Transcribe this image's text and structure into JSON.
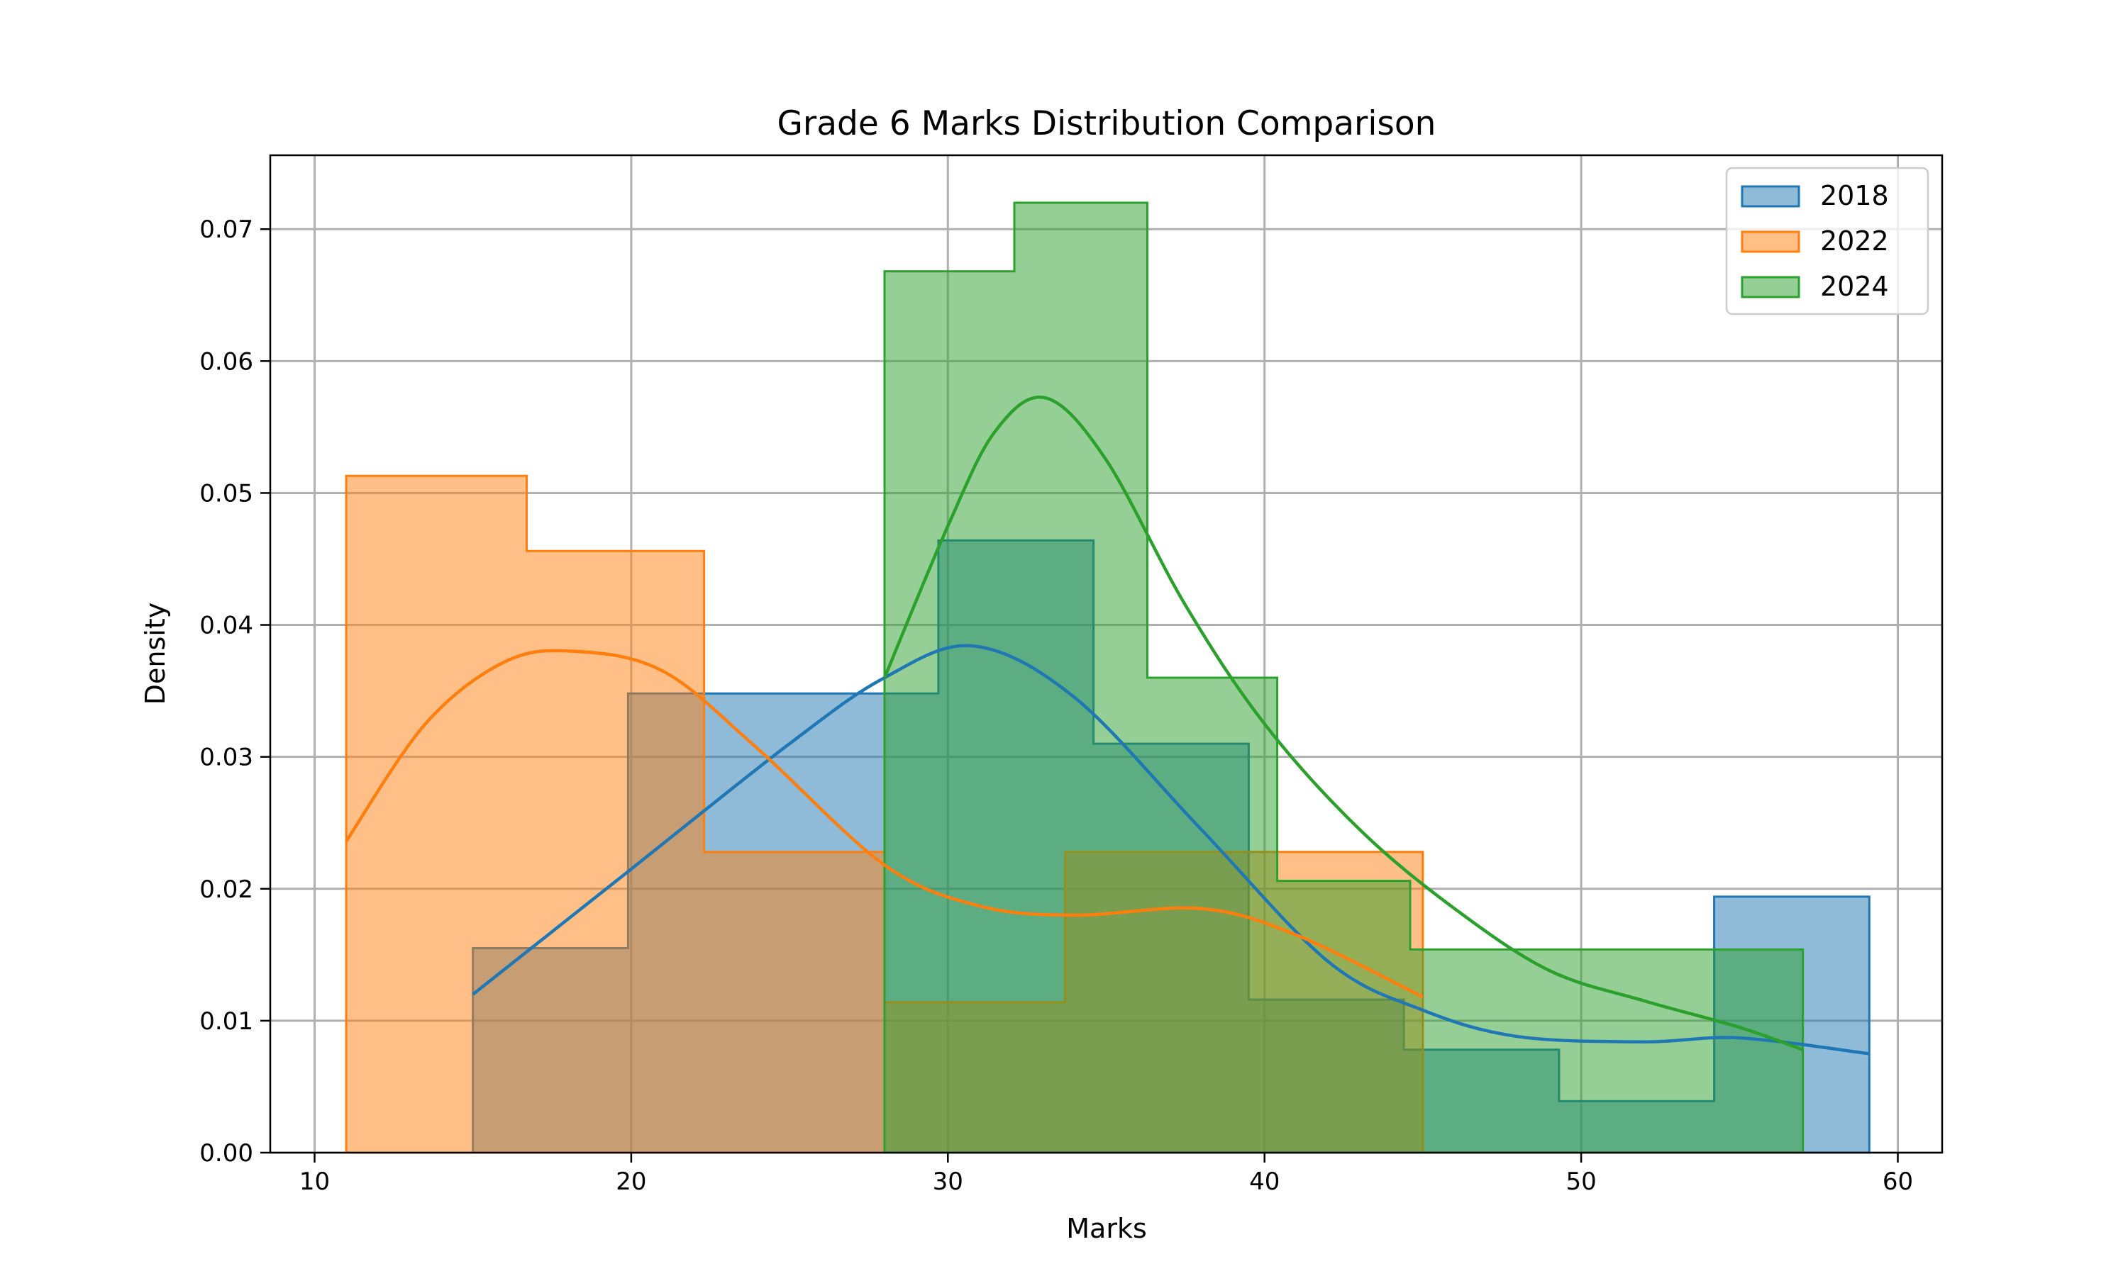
{
  "chart_data": {
    "type": "histogram",
    "title": "Grade 6 Marks Distribution Comparison",
    "xlabel": "Marks",
    "ylabel": "Density",
    "xlim": [
      8.6,
      61.4
    ],
    "ylim": [
      0,
      0.0756
    ],
    "xticks": [
      10,
      20,
      30,
      40,
      50,
      60
    ],
    "xtick_labels": [
      "10",
      "20",
      "30",
      "40",
      "50",
      "60"
    ],
    "yticks": [
      0,
      0.01,
      0.02,
      0.03,
      0.04,
      0.05,
      0.06,
      0.07
    ],
    "ytick_labels": [
      "0.00",
      "0.01",
      "0.02",
      "0.03",
      "0.04",
      "0.05",
      "0.06",
      "0.07"
    ],
    "grid": true,
    "legend_position": "top-right",
    "series": [
      {
        "name": "2018",
        "color": "#1f77b4",
        "bin_edges": [
          15,
          19.9,
          24.8,
          29.7,
          34.6,
          39.5,
          44.4,
          49.3,
          54.2,
          59.1
        ],
        "density": [
          0.0155,
          0.0348,
          0.0348,
          0.0464,
          0.031,
          0.0116,
          0.0078,
          0.0039,
          0.0194
        ],
        "kde": {
          "x": [
            15,
            20,
            25,
            28,
            30.8,
            34,
            38,
            42,
            45,
            48,
            52,
            55,
            59.1
          ],
          "y": [
            0.012,
            0.0215,
            0.031,
            0.036,
            0.0384,
            0.0345,
            0.0245,
            0.0145,
            0.0108,
            0.0088,
            0.0084,
            0.0087,
            0.0075
          ]
        }
      },
      {
        "name": "2022",
        "color": "#ff7f0e",
        "bin_edges": [
          11,
          16.7,
          22.3,
          28,
          33.7,
          39.3,
          45
        ],
        "density": [
          0.0513,
          0.0456,
          0.0228,
          0.0114,
          0.0228,
          0.0228
        ],
        "kde": {
          "x": [
            11,
            13.5,
            16,
            18.2,
            21,
            24,
            28,
            31,
            34,
            38,
            41,
            45
          ],
          "y": [
            0.0236,
            0.0325,
            0.0372,
            0.038,
            0.0365,
            0.0306,
            0.0218,
            0.0187,
            0.018,
            0.0185,
            0.0165,
            0.0118
          ]
        }
      },
      {
        "name": "2024",
        "color": "#2ca02c",
        "bin_edges": [
          28,
          32.1,
          36.3,
          40.4,
          44.6,
          48.7,
          52.9,
          57
        ],
        "density": [
          0.0668,
          0.072,
          0.036,
          0.0206,
          0.0154,
          0.0154,
          0.0154
        ],
        "kde": {
          "x": [
            28,
            30,
            31.5,
            33.1,
            35,
            37.5,
            40,
            43,
            46,
            49,
            52,
            55,
            57
          ],
          "y": [
            0.036,
            0.0475,
            0.0547,
            0.0572,
            0.0525,
            0.0415,
            0.0325,
            0.0245,
            0.0185,
            0.0138,
            0.0115,
            0.0095,
            0.0078
          ]
        }
      }
    ]
  }
}
